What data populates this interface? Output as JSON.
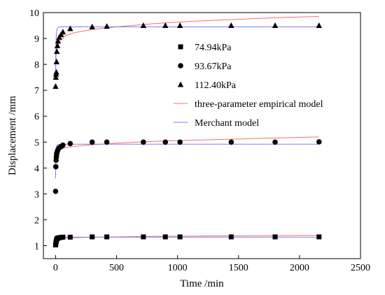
{
  "chart_data": {
    "type": "scatter",
    "title": "",
    "xlabel": "Time /min",
    "ylabel": "Displacement /mm",
    "xlim": [
      -100,
      2500
    ],
    "ylim": [
      0.5,
      10
    ],
    "xticks": [
      0,
      500,
      1000,
      1500,
      2000,
      2500
    ],
    "yticks": [
      1,
      2,
      3,
      4,
      5,
      6,
      7,
      8,
      9,
      10
    ],
    "legend_position": "center-right",
    "series": [
      {
        "name": "74.94kPa",
        "marker": "square",
        "color": "#000000",
        "x": [
          0,
          2,
          4,
          6,
          8,
          10,
          15,
          20,
          30,
          45,
          60,
          120,
          300,
          420,
          720,
          900,
          1020,
          1440,
          1800,
          2160
        ],
        "y": [
          1.03,
          1.08,
          1.14,
          1.19,
          1.23,
          1.26,
          1.28,
          1.3,
          1.31,
          1.32,
          1.33,
          1.33,
          1.34,
          1.34,
          1.34,
          1.34,
          1.34,
          1.34,
          1.34,
          1.34
        ]
      },
      {
        "name": "93.67kPa",
        "marker": "circle",
        "color": "#000000",
        "x": [
          0,
          2,
          4,
          6,
          8,
          10,
          15,
          20,
          30,
          45,
          60,
          120,
          300,
          420,
          720,
          900,
          1020,
          1440,
          1800,
          2160
        ],
        "y": [
          3.1,
          4.05,
          4.3,
          4.42,
          4.5,
          4.58,
          4.65,
          4.72,
          4.78,
          4.83,
          4.88,
          4.94,
          5.0,
          5.0,
          5.0,
          5.0,
          5.0,
          5.0,
          5.0,
          5.01
        ]
      },
      {
        "name": "112.40kPa",
        "marker": "triangle",
        "color": "#000000",
        "x": [
          0,
          2,
          4,
          6,
          8,
          10,
          15,
          20,
          30,
          45,
          60,
          120,
          300,
          420,
          720,
          900,
          1020,
          1440,
          1800,
          2160
        ],
        "y": [
          7.15,
          7.5,
          7.62,
          7.7,
          8.1,
          8.5,
          8.72,
          8.9,
          9.05,
          9.15,
          9.25,
          9.38,
          9.45,
          9.47,
          9.5,
          9.5,
          9.5,
          9.5,
          9.5,
          9.5
        ]
      }
    ],
    "models": [
      {
        "name": "three-parameter empirical model",
        "color": "#ff6b6b",
        "curves": [
          {
            "x": [
              0,
              1,
              3,
              5,
              10,
              20,
              40,
              80,
              150,
              300,
              500,
              800,
              1100,
              1500,
              1800,
              2160
            ],
            "y": [
              1.0,
              1.15,
              1.2,
              1.22,
              1.24,
              1.26,
              1.28,
              1.3,
              1.31,
              1.33,
              1.34,
              1.36,
              1.37,
              1.38,
              1.39,
              1.4
            ]
          },
          {
            "x": [
              0,
              1,
              3,
              5,
              10,
              20,
              40,
              80,
              150,
              300,
              500,
              800,
              1100,
              1500,
              1800,
              2160
            ],
            "y": [
              3.6,
              4.3,
              4.45,
              4.52,
              4.6,
              4.67,
              4.72,
              4.78,
              4.83,
              4.9,
              4.96,
              5.03,
              5.07,
              5.12,
              5.16,
              5.2
            ]
          },
          {
            "x": [
              0,
              1,
              3,
              5,
              10,
              20,
              40,
              80,
              150,
              300,
              500,
              800,
              1100,
              1500,
              1800,
              2160
            ],
            "y": [
              7.6,
              8.1,
              8.35,
              8.45,
              8.58,
              8.75,
              8.93,
              9.1,
              9.22,
              9.35,
              9.45,
              9.57,
              9.66,
              9.74,
              9.8,
              9.85
            ]
          }
        ]
      },
      {
        "name": "Merchant model",
        "color": "#7b7bff",
        "curves": [
          {
            "x": [
              0,
              2,
              4,
              6,
              8,
              10,
              15,
              20,
              30,
              45,
              60,
              100,
              200,
              400,
              2160
            ],
            "y": [
              1.0,
              1.09,
              1.16,
              1.21,
              1.25,
              1.27,
              1.3,
              1.31,
              1.32,
              1.32,
              1.33,
              1.33,
              1.33,
              1.33,
              1.33
            ]
          },
          {
            "x": [
              0,
              2,
              4,
              6,
              8,
              10,
              15,
              20,
              30,
              45,
              60,
              100,
              200,
              400,
              2160
            ],
            "y": [
              3.6,
              4.3,
              4.6,
              4.75,
              4.82,
              4.86,
              4.9,
              4.91,
              4.92,
              4.92,
              4.92,
              4.92,
              4.92,
              4.92,
              4.92
            ]
          },
          {
            "x": [
              0,
              2,
              4,
              6,
              8,
              10,
              15,
              20,
              30,
              45,
              60,
              100,
              200,
              400,
              2160
            ],
            "y": [
              7.6,
              8.55,
              8.95,
              9.15,
              9.27,
              9.33,
              9.4,
              9.43,
              9.44,
              9.45,
              9.45,
              9.45,
              9.45,
              9.45,
              9.45
            ]
          }
        ]
      }
    ]
  }
}
